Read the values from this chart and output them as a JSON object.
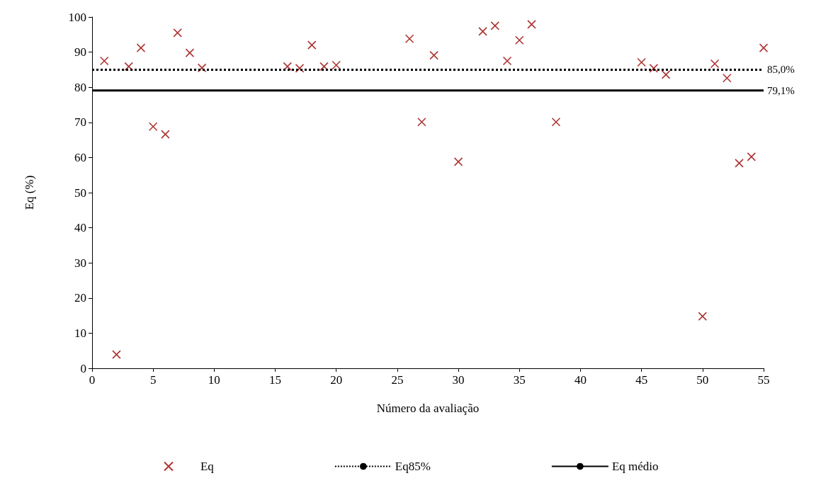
{
  "chart_data": {
    "type": "scatter",
    "xlabel": "Número da avaliação",
    "ylabel": "Eq (%)",
    "xlim": [
      0,
      55
    ],
    "xticks": [
      0,
      5,
      10,
      15,
      20,
      25,
      30,
      35,
      40,
      45,
      50,
      55
    ],
    "ylim": [
      0,
      100
    ],
    "yticks": [
      0,
      10,
      20,
      30,
      40,
      50,
      60,
      70,
      80,
      90,
      100
    ],
    "grid": false,
    "legend": "bottom",
    "marker": "cross",
    "series": [
      {
        "name": "Eq",
        "color": "#990000",
        "x": [
          1,
          2,
          3,
          4,
          5,
          6,
          7,
          8,
          9,
          16,
          17,
          18,
          19,
          20,
          26,
          27,
          28,
          30,
          32,
          33,
          34,
          35,
          36,
          38,
          45,
          46,
          47,
          50,
          51,
          52,
          53,
          54,
          55
        ],
        "values": [
          87.5,
          3.9,
          85.9,
          91.2,
          68.8,
          66.6,
          95.5,
          89.8,
          85.5,
          85.9,
          85.4,
          92.0,
          85.9,
          86.3,
          93.8,
          70.1,
          89.1,
          58.8,
          95.9,
          97.5,
          87.5,
          93.4,
          97.9,
          70.1,
          87.1,
          85.4,
          83.6,
          14.8,
          86.7,
          82.6,
          58.4,
          60.2,
          91.2
        ]
      },
      {
        "name": "Eq85%",
        "type": "line",
        "color": "#000000",
        "line_style": "dotted",
        "marker": "none",
        "x": [
          0,
          55
        ],
        "values": [
          85.0,
          85.0
        ],
        "value_labels": [
          null,
          "85,0%"
        ]
      },
      {
        "name": "Eq médio",
        "type": "line",
        "color": "#000000",
        "line_style": "solid",
        "marker": "none",
        "x": [
          0,
          55
        ],
        "values": [
          79.1,
          79.1
        ],
        "value_labels": [
          null,
          "79,1%"
        ]
      }
    ]
  }
}
